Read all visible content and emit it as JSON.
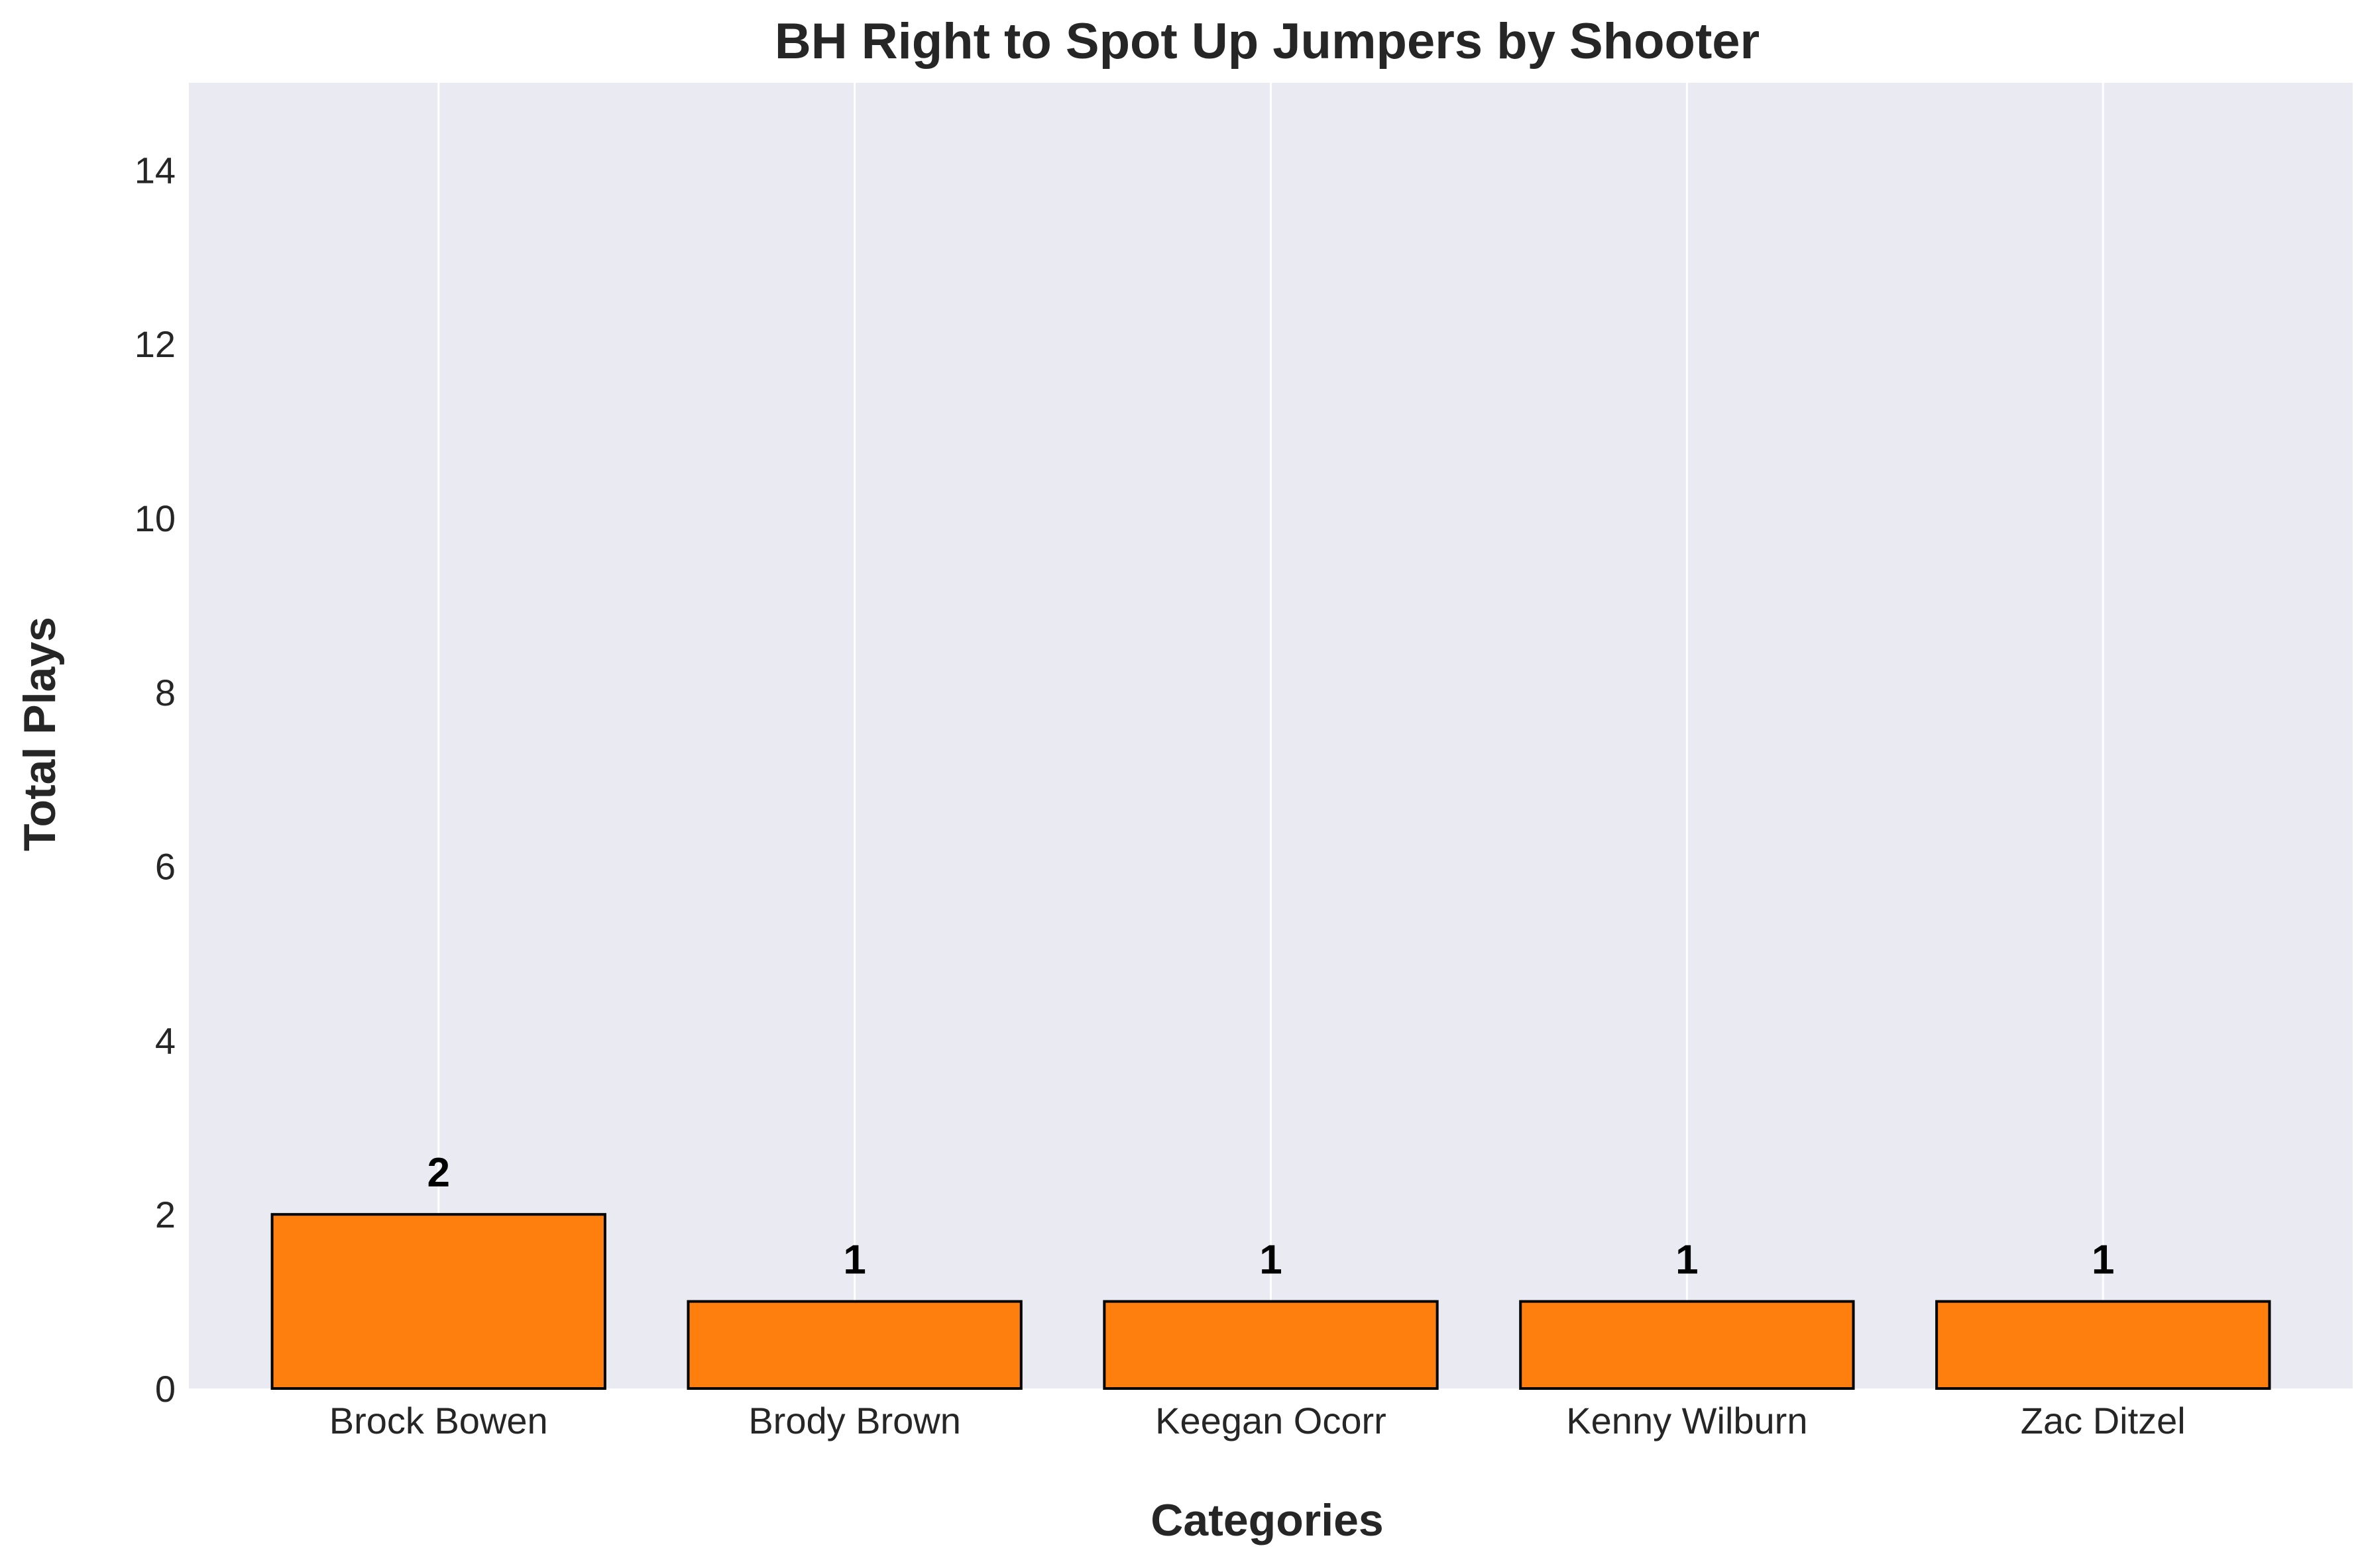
{
  "chart_data": {
    "type": "bar",
    "title": "BH Right to Spot Up Jumpers by Shooter",
    "xlabel": "Categories",
    "ylabel": "Total Plays",
    "categories": [
      "Brock Bowen",
      "Brody Brown",
      "Keegan Ocorr",
      "Kenny Wilburn",
      "Zac Ditzel"
    ],
    "values": [
      2,
      1,
      1,
      1,
      1
    ],
    "value_labels": [
      "2",
      "1",
      "1",
      "1",
      "1"
    ],
    "ylim": [
      0,
      15
    ],
    "yticks": [
      "0",
      "2",
      "4",
      "6",
      "8",
      "10",
      "12",
      "14"
    ],
    "grid": "vertical",
    "legend": "none",
    "colors": {
      "bar": "#ff7f0e",
      "bar_edge": "#000000",
      "plot_background": "#eaeaf2",
      "grid": "#ffffff"
    }
  }
}
